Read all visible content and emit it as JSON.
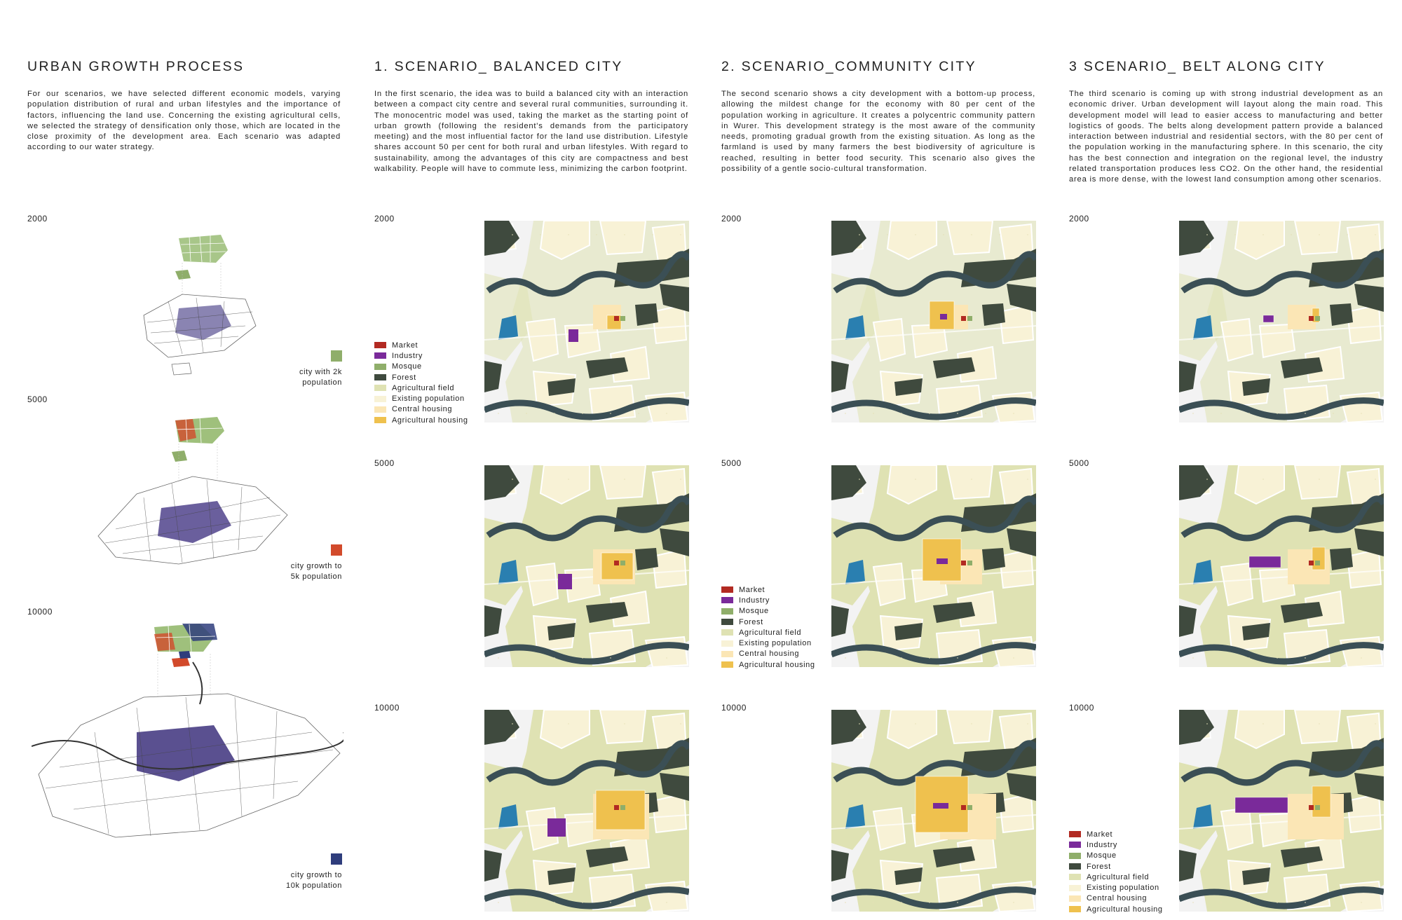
{
  "columns": [
    {
      "title": "URBAN GROWTH PROCESS",
      "body": "For our scenarios, we have selected different economic models, varying population distribution of rural and urban lifestyles and the importance of factors, influencing the land use. Concerning the existing agricultural cells, we selected the strategy of densification only those, which are located in the close proximity of the development area. Each scenario was adapted according to our water strategy."
    },
    {
      "title": "1. SCENARIO_ BALANCED CITY",
      "body": "In the first scenario, the idea was to build a balanced city with an interaction between a compact city centre and several rural communities, surrounding it. The monocentric model was used, taking the market as the starting point of urban growth (following the resident's demands from the participatory meeting) and the most influential factor for the land use distribution. Lifestyle shares account 50 per cent for both rural and urban lifestyles. With regard to sustainability, among the advantages of this city are compactness and best walkability. People will have to commute less, minimizing the carbon footprint."
    },
    {
      "title": "2. SCENARIO_COMMUNITY CITY",
      "body": "The second scenario shows a city development with a bottom-up process, allowing the mildest change for the economy with 80 per cent of the population working in agriculture. It creates a polycentric community pattern in Wurer. This development strategy is the most aware of the community needs, promoting gradual growth from the existing situation. As long as the farmland is used by many farmers the best biodiversity of agriculture is reached, resulting in better food security. This scenario also gives the possibility of a gentle socio-cultural transformation."
    },
    {
      "title": "3 SCENARIO_ BELT ALONG CITY",
      "body": "The third scenario is coming up with strong industrial development as an economic driver. Urban development will layout along the main road. This development model will lead to easier access to manufacturing and better logistics of goods. The belts along development pattern provide a balanced interaction between industrial and residential sectors, with the 80 per cent of the population working in the manufacturing sphere. In this scenario, the city has the best connection and integration on the regional level, the industry related transportation produces less CO2. On the other hand, the residential area is more dense, with the lowest land consumption among other scenarios."
    }
  ],
  "years": [
    "2000",
    "5000",
    "10000"
  ],
  "growth_notes": [
    {
      "line1": "city with 2k",
      "line2": "population",
      "color": "#8fae6a"
    },
    {
      "line1": "city growth to",
      "line2": "5k population",
      "color": "#d24a2b"
    },
    {
      "line1": "city growth to",
      "line2": "10k population",
      "color": "#2f3d7c"
    }
  ],
  "legend": [
    {
      "label": "Market",
      "color": "#b22a22"
    },
    {
      "label": "Industry",
      "color": "#7a2a9a"
    },
    {
      "label": "Mosque",
      "color": "#8fae6a"
    },
    {
      "label": "Forest",
      "color": "#3f4a3e"
    },
    {
      "label": "Agricultural field",
      "color": "#dfe2b3"
    },
    {
      "label": "Existing population",
      "color": "#f8f2d6"
    },
    {
      "label": "Central housing",
      "color": "#fbe6b5"
    },
    {
      "label": "Agricultural housing",
      "color": "#efc14e"
    }
  ],
  "colors": {
    "water": "#2a7fb0",
    "river": "#3b4f55",
    "road": "#ffffff",
    "background": "#f3f3f3"
  }
}
